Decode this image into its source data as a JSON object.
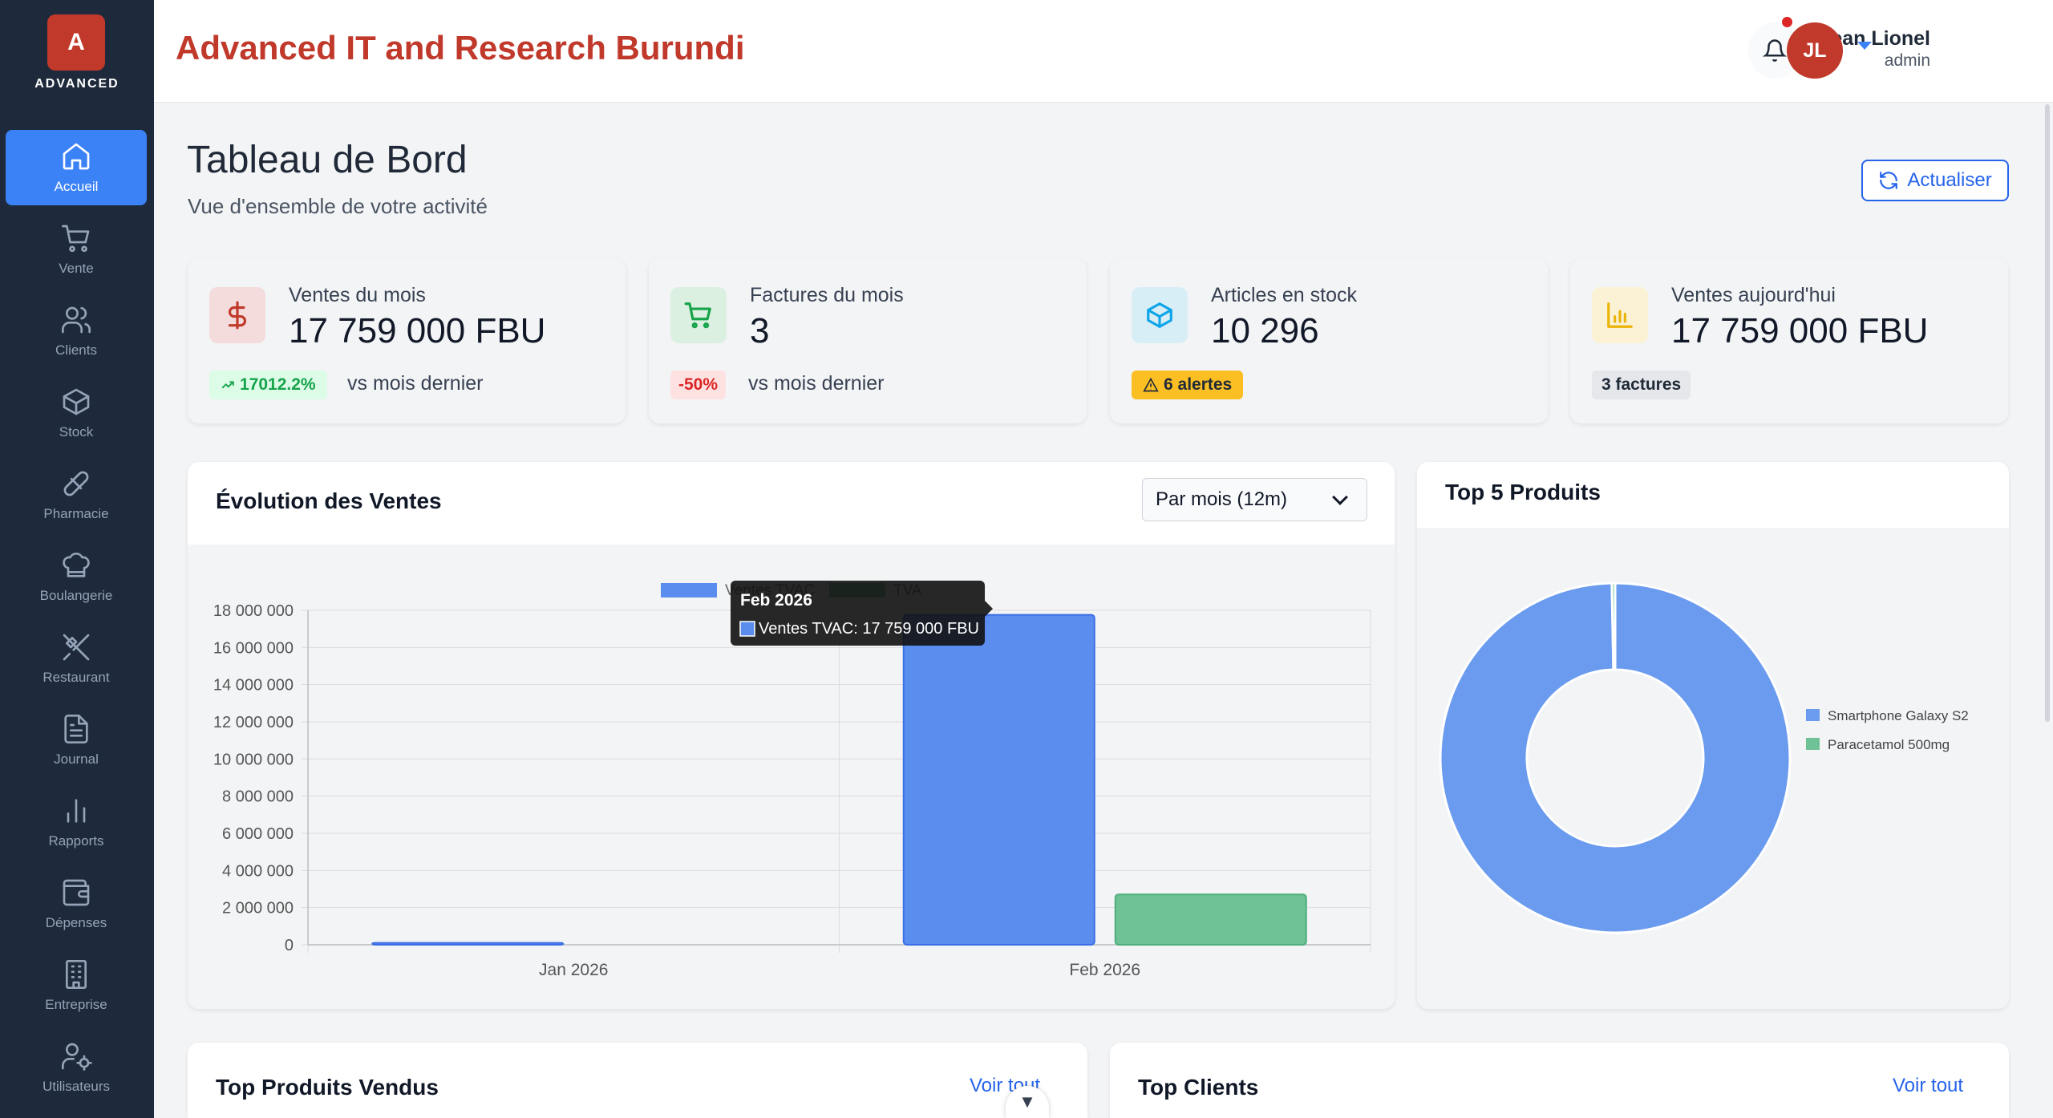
{
  "sidebar": {
    "logo_letter": "A",
    "logo_text": "ADVANCED",
    "items": [
      {
        "label": "Accueil",
        "icon": "home-icon",
        "active": true
      },
      {
        "label": "Vente",
        "icon": "cart-icon"
      },
      {
        "label": "Clients",
        "icon": "users-icon"
      },
      {
        "label": "Stock",
        "icon": "box-icon"
      },
      {
        "label": "Pharmacie",
        "icon": "pill-icon"
      },
      {
        "label": "Boulangerie",
        "icon": "chef-hat-icon"
      },
      {
        "label": "Restaurant",
        "icon": "utensils-icon"
      },
      {
        "label": "Journal",
        "icon": "document-icon"
      },
      {
        "label": "Rapports",
        "icon": "bar-chart-icon"
      },
      {
        "label": "Dépenses",
        "icon": "wallet-icon"
      },
      {
        "label": "Entreprise",
        "icon": "building-icon"
      },
      {
        "label": "Utilisateurs",
        "icon": "user-cog-icon"
      }
    ]
  },
  "header": {
    "brand": "Advanced IT and Research Burundi",
    "user_name": "Jean Lionel",
    "user_role": "admin",
    "avatar_initials": "JL"
  },
  "page": {
    "title": "Tableau de Bord",
    "subtitle": "Vue d'ensemble de votre activité",
    "refresh_label": "Actualiser"
  },
  "stats": [
    {
      "title": "Ventes du mois",
      "value": "17 759 000 FBU",
      "badge": "17012.2%",
      "sub": "vs mois dernier",
      "color": "#c0392b"
    },
    {
      "title": "Factures du mois",
      "value": "3",
      "badge": "-50%",
      "sub": "vs mois dernier",
      "color": "#16a34a"
    },
    {
      "title": "Articles en stock",
      "value": "10 296",
      "badge": "6 alertes",
      "color": "#0ea5e9"
    },
    {
      "title": "Ventes aujourd'hui",
      "value": "17 759 000 FBU",
      "badge": "3 factures",
      "color": "#eab308"
    }
  ],
  "sales_panel": {
    "title": "Évolution des Ventes",
    "period_select": "Par mois (12m)",
    "tooltip_title": "Feb 2026",
    "tooltip_line": "Ventes TVAC: 17 759 000 FBU"
  },
  "chart_data": [
    {
      "type": "bar",
      "categories": [
        "Jan 2026",
        "Feb 2026"
      ],
      "series": [
        {
          "name": "Ventes TVAC",
          "values": [
            104000,
            17759000
          ],
          "color": "#5b8def"
        },
        {
          "name": "TVA",
          "values": [
            0,
            2710000
          ],
          "color": "#6fc196"
        }
      ],
      "ylim": [
        0,
        18000000
      ],
      "yticks": [
        "0",
        "2 000 000",
        "4 000 000",
        "6 000 000",
        "8 000 000",
        "10 000 000",
        "12 000 000",
        "14 000 000",
        "16 000 000",
        "18 000 000"
      ],
      "legend": "top"
    },
    {
      "type": "pie",
      "title": "Top 5 Produits",
      "labels": [
        "Smartphone Galaxy S2",
        "Paracetamol 500mg"
      ],
      "values": [
        99.7,
        0.3
      ],
      "colors": [
        "#6b9bef",
        "#6fc196"
      ],
      "legend": "right"
    }
  ],
  "bottom": {
    "top_products_title": "Top Produits Vendus",
    "top_clients_title": "Top Clients",
    "see_all": "Voir tout"
  }
}
